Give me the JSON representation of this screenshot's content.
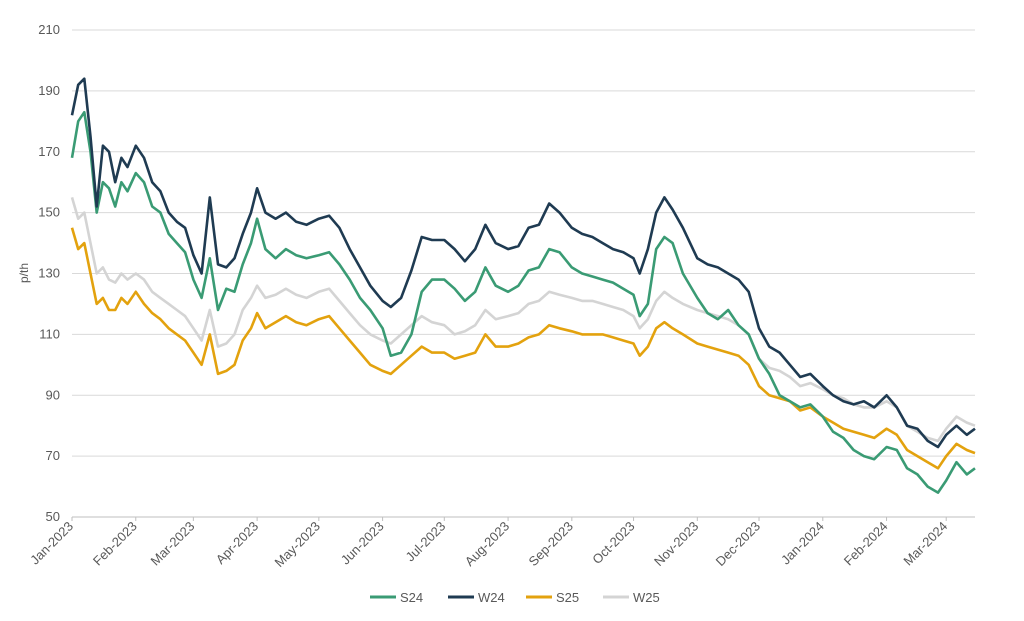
{
  "chart_data": {
    "type": "line",
    "title": "",
    "xlabel": "",
    "ylabel": "p/th",
    "ylim": [
      50,
      210
    ],
    "yticks": [
      "50",
      "70",
      "90",
      "110",
      "130",
      "150",
      "170",
      "190",
      "210"
    ],
    "xlim": [
      "2023-01-01",
      "2024-03-15"
    ],
    "xticks": [
      "Jan-2023",
      "Feb-2023",
      "Mar-2023",
      "Apr-2023",
      "May-2023",
      "Jun-2023",
      "Jul-2023",
      "Aug-2023",
      "Sep-2023",
      "Oct-2023",
      "Nov-2023",
      "Dec-2023",
      "Jan-2024",
      "Feb-2024",
      "Mar-2024"
    ],
    "xtick_dates": [
      "2023-01-01",
      "2023-02-01",
      "2023-03-01",
      "2023-04-01",
      "2023-05-01",
      "2023-06-01",
      "2023-07-01",
      "2023-08-01",
      "2023-09-01",
      "2023-10-01",
      "2023-11-01",
      "2023-12-01",
      "2024-01-01",
      "2024-02-01",
      "2024-03-01"
    ],
    "grid": true,
    "legend_position": "bottom",
    "series": [
      {
        "name": "S24",
        "color": "#3a9b74",
        "x": [
          "2023-01-01",
          "2023-01-04",
          "2023-01-07",
          "2023-01-10",
          "2023-01-13",
          "2023-01-16",
          "2023-01-19",
          "2023-01-22",
          "2023-01-25",
          "2023-01-28",
          "2023-02-01",
          "2023-02-05",
          "2023-02-09",
          "2023-02-13",
          "2023-02-17",
          "2023-02-21",
          "2023-02-25",
          "2023-03-01",
          "2023-03-05",
          "2023-03-09",
          "2023-03-13",
          "2023-03-17",
          "2023-03-21",
          "2023-03-25",
          "2023-03-29",
          "2023-04-01",
          "2023-04-05",
          "2023-04-10",
          "2023-04-15",
          "2023-04-20",
          "2023-04-25",
          "2023-05-01",
          "2023-05-06",
          "2023-05-11",
          "2023-05-16",
          "2023-05-21",
          "2023-05-26",
          "2023-06-01",
          "2023-06-05",
          "2023-06-10",
          "2023-06-15",
          "2023-06-20",
          "2023-06-25",
          "2023-07-01",
          "2023-07-06",
          "2023-07-11",
          "2023-07-16",
          "2023-07-21",
          "2023-07-26",
          "2023-08-01",
          "2023-08-06",
          "2023-08-11",
          "2023-08-16",
          "2023-08-21",
          "2023-08-26",
          "2023-09-01",
          "2023-09-06",
          "2023-09-11",
          "2023-09-16",
          "2023-09-21",
          "2023-09-26",
          "2023-10-01",
          "2023-10-04",
          "2023-10-08",
          "2023-10-12",
          "2023-10-16",
          "2023-10-20",
          "2023-10-25",
          "2023-11-01",
          "2023-11-06",
          "2023-11-11",
          "2023-11-16",
          "2023-11-21",
          "2023-11-26",
          "2023-12-01",
          "2023-12-06",
          "2023-12-11",
          "2023-12-16",
          "2023-12-21",
          "2023-12-26",
          "2024-01-01",
          "2024-01-06",
          "2024-01-11",
          "2024-01-16",
          "2024-01-21",
          "2024-01-26",
          "2024-02-01",
          "2024-02-06",
          "2024-02-11",
          "2024-02-16",
          "2024-02-21",
          "2024-02-26",
          "2024-03-01",
          "2024-03-06",
          "2024-03-11",
          "2024-03-15"
        ],
        "values": [
          168,
          180,
          183,
          170,
          150,
          160,
          158,
          152,
          160,
          157,
          163,
          160,
          152,
          150,
          143,
          140,
          137,
          128,
          122,
          135,
          118,
          125,
          124,
          133,
          140,
          148,
          138,
          135,
          138,
          136,
          135,
          136,
          137,
          133,
          128,
          122,
          118,
          112,
          103,
          104,
          110,
          124,
          128,
          128,
          125,
          121,
          124,
          132,
          126,
          124,
          126,
          131,
          132,
          138,
          137,
          132,
          130,
          129,
          128,
          127,
          125,
          123,
          116,
          120,
          138,
          142,
          140,
          130,
          122,
          117,
          115,
          118,
          113,
          110,
          102,
          97,
          90,
          88,
          86,
          87,
          83,
          78,
          76,
          72,
          70,
          69,
          73,
          72,
          66,
          64,
          60,
          58,
          62,
          68,
          64,
          66
        ]
      },
      {
        "name": "W24",
        "color": "#1f3b52",
        "x": [
          "2023-01-01",
          "2023-01-04",
          "2023-01-07",
          "2023-01-10",
          "2023-01-13",
          "2023-01-16",
          "2023-01-19",
          "2023-01-22",
          "2023-01-25",
          "2023-01-28",
          "2023-02-01",
          "2023-02-05",
          "2023-02-09",
          "2023-02-13",
          "2023-02-17",
          "2023-02-21",
          "2023-02-25",
          "2023-03-01",
          "2023-03-05",
          "2023-03-09",
          "2023-03-13",
          "2023-03-17",
          "2023-03-21",
          "2023-03-25",
          "2023-03-29",
          "2023-04-01",
          "2023-04-05",
          "2023-04-10",
          "2023-04-15",
          "2023-04-20",
          "2023-04-25",
          "2023-05-01",
          "2023-05-06",
          "2023-05-11",
          "2023-05-16",
          "2023-05-21",
          "2023-05-26",
          "2023-06-01",
          "2023-06-05",
          "2023-06-10",
          "2023-06-15",
          "2023-06-20",
          "2023-06-25",
          "2023-07-01",
          "2023-07-06",
          "2023-07-11",
          "2023-07-16",
          "2023-07-21",
          "2023-07-26",
          "2023-08-01",
          "2023-08-06",
          "2023-08-11",
          "2023-08-16",
          "2023-08-21",
          "2023-08-26",
          "2023-09-01",
          "2023-09-06",
          "2023-09-11",
          "2023-09-16",
          "2023-09-21",
          "2023-09-26",
          "2023-10-01",
          "2023-10-04",
          "2023-10-08",
          "2023-10-12",
          "2023-10-16",
          "2023-10-20",
          "2023-10-25",
          "2023-11-01",
          "2023-11-06",
          "2023-11-11",
          "2023-11-16",
          "2023-11-21",
          "2023-11-26",
          "2023-12-01",
          "2023-12-06",
          "2023-12-11",
          "2023-12-16",
          "2023-12-21",
          "2023-12-26",
          "2024-01-01",
          "2024-01-06",
          "2024-01-11",
          "2024-01-16",
          "2024-01-21",
          "2024-01-26",
          "2024-02-01",
          "2024-02-06",
          "2024-02-11",
          "2024-02-16",
          "2024-02-21",
          "2024-02-26",
          "2024-03-01",
          "2024-03-06",
          "2024-03-11",
          "2024-03-15"
        ],
        "values": [
          182,
          192,
          194,
          175,
          152,
          172,
          170,
          160,
          168,
          165,
          172,
          168,
          160,
          157,
          150,
          147,
          145,
          136,
          130,
          155,
          133,
          132,
          135,
          143,
          150,
          158,
          150,
          148,
          150,
          147,
          146,
          148,
          149,
          145,
          138,
          132,
          126,
          121,
          119,
          122,
          131,
          142,
          141,
          141,
          138,
          134,
          138,
          146,
          140,
          138,
          139,
          145,
          146,
          153,
          150,
          145,
          143,
          142,
          140,
          138,
          137,
          135,
          130,
          138,
          150,
          155,
          151,
          145,
          135,
          133,
          132,
          130,
          128,
          124,
          112,
          106,
          104,
          100,
          96,
          97,
          93,
          90,
          88,
          87,
          88,
          86,
          90,
          86,
          80,
          79,
          75,
          73,
          77,
          80,
          77,
          79
        ]
      },
      {
        "name": "S25",
        "color": "#e3a20e",
        "x": [
          "2023-01-01",
          "2023-01-04",
          "2023-01-07",
          "2023-01-10",
          "2023-01-13",
          "2023-01-16",
          "2023-01-19",
          "2023-01-22",
          "2023-01-25",
          "2023-01-28",
          "2023-02-01",
          "2023-02-05",
          "2023-02-09",
          "2023-02-13",
          "2023-02-17",
          "2023-02-21",
          "2023-02-25",
          "2023-03-01",
          "2023-03-05",
          "2023-03-09",
          "2023-03-13",
          "2023-03-17",
          "2023-03-21",
          "2023-03-25",
          "2023-03-29",
          "2023-04-01",
          "2023-04-05",
          "2023-04-10",
          "2023-04-15",
          "2023-04-20",
          "2023-04-25",
          "2023-05-01",
          "2023-05-06",
          "2023-05-11",
          "2023-05-16",
          "2023-05-21",
          "2023-05-26",
          "2023-06-01",
          "2023-06-05",
          "2023-06-10",
          "2023-06-15",
          "2023-06-20",
          "2023-06-25",
          "2023-07-01",
          "2023-07-06",
          "2023-07-11",
          "2023-07-16",
          "2023-07-21",
          "2023-07-26",
          "2023-08-01",
          "2023-08-06",
          "2023-08-11",
          "2023-08-16",
          "2023-08-21",
          "2023-08-26",
          "2023-09-01",
          "2023-09-06",
          "2023-09-11",
          "2023-09-16",
          "2023-09-21",
          "2023-09-26",
          "2023-10-01",
          "2023-10-04",
          "2023-10-08",
          "2023-10-12",
          "2023-10-16",
          "2023-10-20",
          "2023-10-25",
          "2023-11-01",
          "2023-11-06",
          "2023-11-11",
          "2023-11-16",
          "2023-11-21",
          "2023-11-26",
          "2023-12-01",
          "2023-12-06",
          "2023-12-11",
          "2023-12-16",
          "2023-12-21",
          "2023-12-26",
          "2024-01-01",
          "2024-01-06",
          "2024-01-11",
          "2024-01-16",
          "2024-01-21",
          "2024-01-26",
          "2024-02-01",
          "2024-02-06",
          "2024-02-11",
          "2024-02-16",
          "2024-02-21",
          "2024-02-26",
          "2024-03-01",
          "2024-03-06",
          "2024-03-11",
          "2024-03-15"
        ],
        "values": [
          145,
          138,
          140,
          130,
          120,
          122,
          118,
          118,
          122,
          120,
          124,
          120,
          117,
          115,
          112,
          110,
          108,
          104,
          100,
          110,
          97,
          98,
          100,
          108,
          112,
          117,
          112,
          114,
          116,
          114,
          113,
          115,
          116,
          112,
          108,
          104,
          100,
          98,
          97,
          100,
          103,
          106,
          104,
          104,
          102,
          103,
          104,
          110,
          106,
          106,
          107,
          109,
          110,
          113,
          112,
          111,
          110,
          110,
          110,
          109,
          108,
          107,
          103,
          106,
          112,
          114,
          112,
          110,
          107,
          106,
          105,
          104,
          103,
          100,
          93,
          90,
          89,
          88,
          85,
          86,
          83,
          81,
          79,
          78,
          77,
          76,
          79,
          77,
          72,
          70,
          68,
          66,
          70,
          74,
          72,
          71
        ]
      },
      {
        "name": "W25",
        "color": "#d4d4d4",
        "x": [
          "2023-01-01",
          "2023-01-04",
          "2023-01-07",
          "2023-01-10",
          "2023-01-13",
          "2023-01-16",
          "2023-01-19",
          "2023-01-22",
          "2023-01-25",
          "2023-01-28",
          "2023-02-01",
          "2023-02-05",
          "2023-02-09",
          "2023-02-13",
          "2023-02-17",
          "2023-02-21",
          "2023-02-25",
          "2023-03-01",
          "2023-03-05",
          "2023-03-09",
          "2023-03-13",
          "2023-03-17",
          "2023-03-21",
          "2023-03-25",
          "2023-03-29",
          "2023-04-01",
          "2023-04-05",
          "2023-04-10",
          "2023-04-15",
          "2023-04-20",
          "2023-04-25",
          "2023-05-01",
          "2023-05-06",
          "2023-05-11",
          "2023-05-16",
          "2023-05-21",
          "2023-05-26",
          "2023-06-01",
          "2023-06-05",
          "2023-06-10",
          "2023-06-15",
          "2023-06-20",
          "2023-06-25",
          "2023-07-01",
          "2023-07-06",
          "2023-07-11",
          "2023-07-16",
          "2023-07-21",
          "2023-07-26",
          "2023-08-01",
          "2023-08-06",
          "2023-08-11",
          "2023-08-16",
          "2023-08-21",
          "2023-08-26",
          "2023-09-01",
          "2023-09-06",
          "2023-09-11",
          "2023-09-16",
          "2023-09-21",
          "2023-09-26",
          "2023-10-01",
          "2023-10-04",
          "2023-10-08",
          "2023-10-12",
          "2023-10-16",
          "2023-10-20",
          "2023-10-25",
          "2023-11-01",
          "2023-11-06",
          "2023-11-11",
          "2023-11-16",
          "2023-11-21",
          "2023-11-26",
          "2023-12-01",
          "2023-12-06",
          "2023-12-11",
          "2023-12-16",
          "2023-12-21",
          "2023-12-26",
          "2024-01-01",
          "2024-01-06",
          "2024-01-11",
          "2024-01-16",
          "2024-01-21",
          "2024-01-26",
          "2024-02-01",
          "2024-02-06",
          "2024-02-11",
          "2024-02-16",
          "2024-02-21",
          "2024-02-26",
          "2024-03-01",
          "2024-03-06",
          "2024-03-11",
          "2024-03-15"
        ],
        "values": [
          155,
          148,
          150,
          140,
          130,
          132,
          128,
          127,
          130,
          128,
          130,
          128,
          124,
          122,
          120,
          118,
          116,
          112,
          108,
          118,
          106,
          107,
          110,
          118,
          122,
          126,
          122,
          123,
          125,
          123,
          122,
          124,
          125,
          121,
          117,
          113,
          110,
          108,
          107,
          110,
          113,
          116,
          114,
          113,
          110,
          111,
          113,
          118,
          115,
          116,
          117,
          120,
          121,
          124,
          123,
          122,
          121,
          121,
          120,
          119,
          118,
          116,
          112,
          115,
          121,
          124,
          122,
          120,
          118,
          117,
          116,
          115,
          113,
          110,
          102,
          99,
          98,
          96,
          93,
          94,
          92,
          90,
          89,
          87,
          86,
          86,
          88,
          86,
          80,
          78,
          76,
          75,
          79,
          83,
          81,
          80
        ]
      }
    ]
  }
}
